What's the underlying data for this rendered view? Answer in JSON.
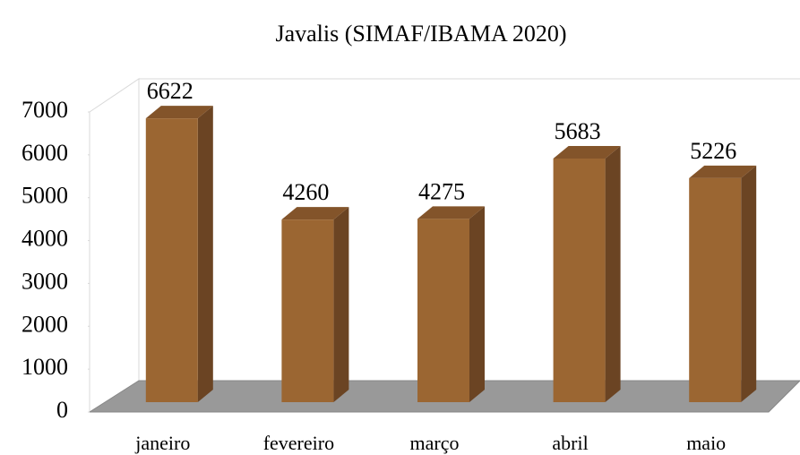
{
  "chart_data": {
    "type": "bar3d",
    "title": "Javalis (SIMAF/IBAMA 2020)",
    "categories": [
      "janeiro",
      "fevereiro",
      "março",
      "abril",
      "maio"
    ],
    "values": [
      6622,
      4260,
      4275,
      5683,
      5226
    ],
    "color": "#9b6632",
    "ylim": [
      0,
      7000
    ],
    "yticks": [
      0,
      1000,
      2000,
      3000,
      4000,
      5000,
      6000,
      7000
    ],
    "grid": false
  }
}
